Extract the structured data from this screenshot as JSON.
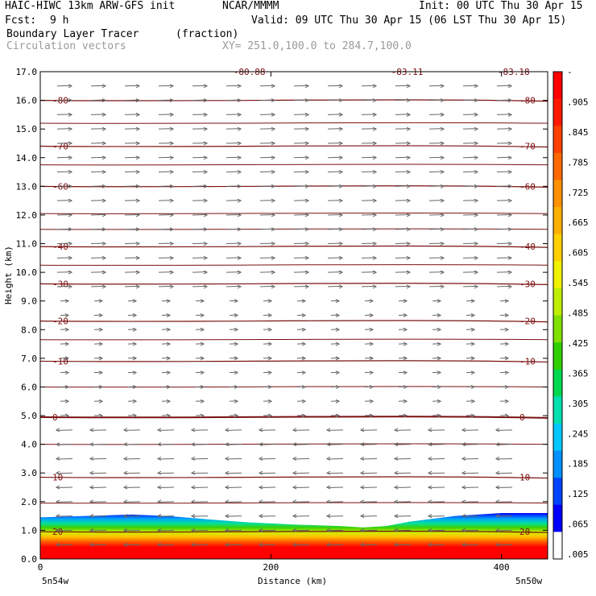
{
  "header": {
    "model": "HAIC-HIWC 13km ARW-GFS init",
    "org": "NCAR/MMMM",
    "init": "Init: 00 UTC Thu 30 Apr 15",
    "fcst_label": "Fcst:",
    "fcst_value": "9 h",
    "valid": "Valid: 09 UTC Thu 30 Apr 15 (06 LST Thu 30 Apr 15)",
    "field": "Boundary Layer Tracer",
    "units": "(fraction)",
    "vectors": "Circulation vectors",
    "xy": "XY= 251.0,100.0 to 284.7,100.0"
  },
  "colors": {
    "contour": "#7a1010",
    "vector": "#666666",
    "frame": "#000000"
  },
  "chart_data": {
    "type": "heatmap",
    "title": "Boundary Layer Tracer",
    "xlabel": "Distance (km)",
    "ylabel": "Height (km)",
    "xlim": [
      0,
      440
    ],
    "ylim": [
      0,
      17
    ],
    "x_ticks": [
      0,
      200,
      400
    ],
    "y_ticks": [
      "0.0",
      "1.0",
      "2.0",
      "3.0",
      "4.0",
      "5.0",
      "6.0",
      "7.0",
      "8.0",
      "9.0",
      "10.0",
      "11.0",
      "12.0",
      "13.0",
      "14.0",
      "15.0",
      "16.0",
      "17.0"
    ],
    "x_endpoints": {
      "left": "5n54w",
      "right": "5n50w"
    },
    "colorbar": {
      "labels": [
        ".005",
        ".065",
        ".125",
        ".185",
        ".245",
        ".305",
        ".365",
        ".425",
        ".485",
        ".545",
        ".605",
        ".665",
        ".725",
        ".785",
        ".845",
        ".905",
        "-"
      ],
      "colors": [
        "#ffffff",
        "#0000ff",
        "#0044ff",
        "#0090ff",
        "#00c8ff",
        "#00e0b0",
        "#00d850",
        "#30d000",
        "#80e000",
        "#c0ee00",
        "#f0f000",
        "#ffd000",
        "#ffb000",
        "#ff9000",
        "#ff6800",
        "#ff4000",
        "#ff1800",
        "#ff0000"
      ]
    },
    "tracer_top_km": [
      [
        0,
        1.45
      ],
      [
        40,
        1.5
      ],
      [
        80,
        1.55
      ],
      [
        110,
        1.5
      ],
      [
        140,
        1.4
      ],
      [
        180,
        1.28
      ],
      [
        220,
        1.2
      ],
      [
        260,
        1.15
      ],
      [
        280,
        1.1
      ],
      [
        300,
        1.15
      ],
      [
        320,
        1.3
      ],
      [
        360,
        1.5
      ],
      [
        400,
        1.6
      ],
      [
        440,
        1.6
      ]
    ],
    "temperature_contours": [
      {
        "label": "-80",
        "level_km": 16.0
      },
      {
        "label": "-70",
        "level_km": 14.4
      },
      {
        "label": "-60",
        "level_km": 13.0
      },
      {
        "label": "-40",
        "level_km": 10.9
      },
      {
        "label": "-30",
        "level_km": 9.6
      },
      {
        "label": "-20",
        "level_km": 8.3
      },
      {
        "label": "-10",
        "level_km": 6.9
      },
      {
        "label": "0",
        "level_km": 4.95
      },
      {
        "label": "10",
        "level_km": 2.85
      },
      {
        "label": "20",
        "level_km": 0.95
      }
    ],
    "top_contour_labels": [
      "-80.88",
      "-83.11",
      "-83.18"
    ]
  }
}
